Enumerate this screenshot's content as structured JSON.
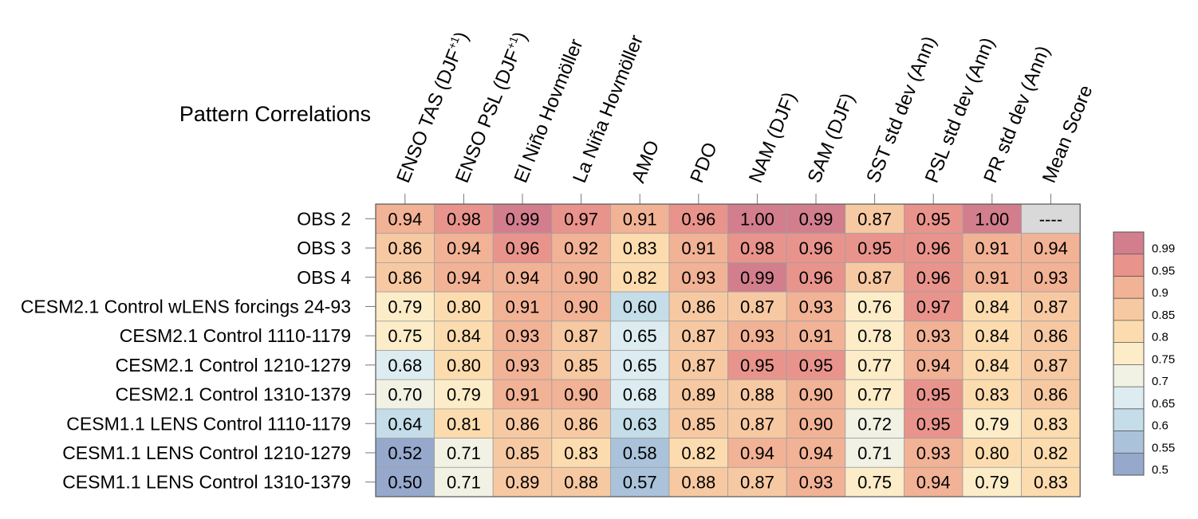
{
  "chart_data": {
    "type": "heatmap",
    "title": "Pattern Correlations",
    "columns": [
      {
        "text": "ENSO TAS (DJF",
        "sup": "+1",
        "tail": ")"
      },
      {
        "text": "ENSO PSL (DJF",
        "sup": "+1",
        "tail": ")"
      },
      {
        "text": "El Niño Hovmöller"
      },
      {
        "text": "La Niña Hovmöller"
      },
      {
        "text": "AMO"
      },
      {
        "text": "PDO"
      },
      {
        "text": "NAM (DJF)"
      },
      {
        "text": "SAM (DJF)"
      },
      {
        "text": "SST std dev (Ann)"
      },
      {
        "text": "PSL std dev (Ann)"
      },
      {
        "text": "PR std dev (Ann)"
      },
      {
        "text": "Mean Score"
      }
    ],
    "rows": [
      "OBS 2",
      "OBS 3",
      "OBS 4",
      "CESM2.1 Control wLENS forcings 24-93",
      "CESM2.1 Control 1110-1179",
      "CESM2.1 Control 1210-1279",
      "CESM2.1 Control 1310-1379",
      "CESM1.1 LENS Control 1110-1179",
      "CESM1.1 LENS Control 1210-1279",
      "CESM1.1 LENS Control 1310-1379"
    ],
    "cell_labels": [
      [
        "0.94",
        "0.98",
        "0.99",
        "0.97",
        "0.91",
        "0.96",
        "1.00",
        "0.99",
        "0.87",
        "0.95",
        "1.00",
        "----"
      ],
      [
        "0.86",
        "0.94",
        "0.96",
        "0.92",
        "0.83",
        "0.91",
        "0.98",
        "0.96",
        "0.95",
        "0.96",
        "0.91",
        "0.94"
      ],
      [
        "0.86",
        "0.94",
        "0.94",
        "0.90",
        "0.82",
        "0.93",
        "0.99",
        "0.96",
        "0.87",
        "0.96",
        "0.91",
        "0.93"
      ],
      [
        "0.79",
        "0.80",
        "0.91",
        "0.90",
        "0.60",
        "0.86",
        "0.87",
        "0.93",
        "0.76",
        "0.97",
        "0.84",
        "0.87"
      ],
      [
        "0.75",
        "0.84",
        "0.93",
        "0.87",
        "0.65",
        "0.87",
        "0.93",
        "0.91",
        "0.78",
        "0.93",
        "0.84",
        "0.86"
      ],
      [
        "0.68",
        "0.80",
        "0.93",
        "0.85",
        "0.65",
        "0.87",
        "0.95",
        "0.95",
        "0.77",
        "0.94",
        "0.84",
        "0.87"
      ],
      [
        "0.70",
        "0.79",
        "0.91",
        "0.90",
        "0.68",
        "0.89",
        "0.88",
        "0.90",
        "0.77",
        "0.95",
        "0.83",
        "0.86"
      ],
      [
        "0.64",
        "0.81",
        "0.86",
        "0.86",
        "0.63",
        "0.85",
        "0.87",
        "0.90",
        "0.72",
        "0.95",
        "0.79",
        "0.83"
      ],
      [
        "0.52",
        "0.71",
        "0.85",
        "0.83",
        "0.58",
        "0.82",
        "0.94",
        "0.94",
        "0.71",
        "0.93",
        "0.80",
        "0.82"
      ],
      [
        "0.50",
        "0.71",
        "0.89",
        "0.88",
        "0.57",
        "0.88",
        "0.87",
        "0.93",
        "0.75",
        "0.94",
        "0.79",
        "0.83"
      ]
    ],
    "colorbar": {
      "levels": [
        "0.5",
        "0.55",
        "0.6",
        "0.65",
        "0.7",
        "0.75",
        "0.8",
        "0.85",
        "0.9",
        "0.95",
        "0.99"
      ],
      "colors": [
        "#96a8cc",
        "#aac2da",
        "#c4dde8",
        "#dcecf1",
        "#f1f1e4",
        "#fcecc8",
        "#fcdcae",
        "#f7c9a2",
        "#f2b295",
        "#e8948c",
        "#d27e8d"
      ],
      "missing_color": "#d9d9d9"
    }
  }
}
